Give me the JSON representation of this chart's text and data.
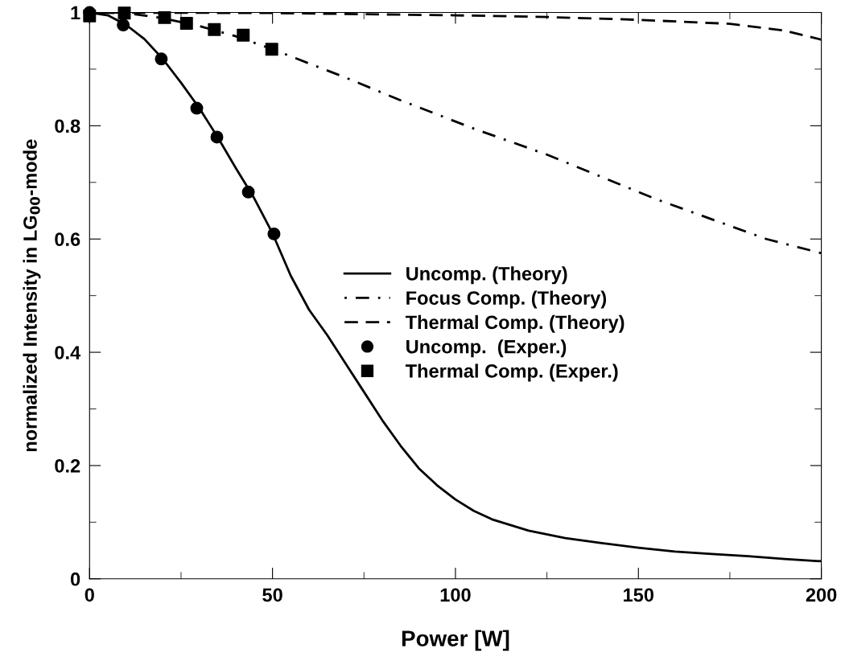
{
  "chart_data": {
    "type": "line",
    "xlabel": "Power [W]",
    "ylabel": "normalized Intensity in LG$_{00}$-mode",
    "xlim": [
      0,
      200
    ],
    "ylim": [
      0,
      1
    ],
    "xticks": [
      0,
      50,
      100,
      150,
      200
    ],
    "yticks": [
      0,
      0.2,
      0.4,
      0.6,
      0.8,
      1
    ],
    "grid": false,
    "legend": "center",
    "series": [
      {
        "name": "Uncomp. (Theory)",
        "color": "#000000",
        "line_style": "solid",
        "marker": "none",
        "x": [
          0,
          5,
          10,
          15,
          20,
          25,
          30,
          35,
          40,
          45,
          50,
          55,
          60,
          65,
          70,
          75,
          80,
          85,
          90,
          95,
          100,
          105,
          110,
          120,
          130,
          140,
          150,
          160,
          170,
          180,
          190,
          200
        ],
        "values": [
          1,
          0.995,
          0.978,
          0.953,
          0.918,
          0.876,
          0.831,
          0.78,
          0.725,
          0.672,
          0.61,
          0.535,
          0.475,
          0.43,
          0.38,
          0.33,
          0.28,
          0.235,
          0.195,
          0.165,
          0.14,
          0.12,
          0.105,
          0.085,
          0.072,
          0.063,
          0.055,
          0.048,
          0.044,
          0.04,
          0.035,
          0.031
        ]
      },
      {
        "name": "Focus Comp. (Theory)",
        "color": "#000000",
        "line_style": "dashdot",
        "marker": "none",
        "x": [
          0,
          10,
          20,
          30,
          40,
          50,
          60,
          70,
          85,
          105,
          125,
          155,
          185,
          200
        ],
        "values": [
          1,
          0.999,
          0.99,
          0.976,
          0.958,
          0.935,
          0.91,
          0.885,
          0.845,
          0.795,
          0.749,
          0.67,
          0.6,
          0.575
        ]
      },
      {
        "name": "Thermal Comp. (Theory)",
        "color": "#000000",
        "line_style": "dashed",
        "marker": "none",
        "x": [
          0,
          50,
          100,
          125,
          150,
          175,
          190,
          200
        ],
        "values": [
          1,
          0.999,
          0.995,
          0.992,
          0.987,
          0.98,
          0.968,
          0.952
        ]
      },
      {
        "name": "Uncomp.  (Exper.)",
        "type": "scatter",
        "color": "#000000",
        "marker": "circle",
        "x": [
          0,
          9.2,
          19.6,
          29.3,
          34.8,
          43.4,
          50.4
        ],
        "values": [
          1,
          0.978,
          0.918,
          0.831,
          0.78,
          0.683,
          0.609
        ]
      },
      {
        "name": "Thermal Comp. (Exper.)",
        "type": "scatter",
        "color": "#000000",
        "marker": "square",
        "x": [
          0,
          9.5,
          20.5,
          26.5,
          34.1,
          42,
          49.8
        ],
        "values": [
          0.994,
          0.999,
          0.991,
          0.981,
          0.97,
          0.96,
          0.935
        ]
      }
    ]
  }
}
